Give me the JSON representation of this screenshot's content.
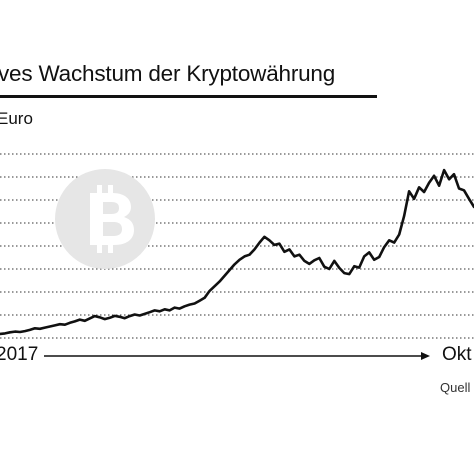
{
  "header": {
    "title": "ves Wachstum der Kryptowährung",
    "unit": "Euro"
  },
  "footer": {
    "source_label": "Quell"
  },
  "colors": {
    "line": "#111111",
    "grid": "#333333",
    "logo_circle": "#e6e6e6",
    "logo_symbol": "#ffffff"
  },
  "logo": {
    "icon": "bitcoin-logo-icon"
  },
  "chart_data": {
    "type": "line",
    "title": "ves Wachstum der Kryptowährung",
    "ylabel": "Euro",
    "xlabel": "",
    "x_tick_labels": [
      "2017",
      "Okt"
    ],
    "x": [
      0,
      5,
      10,
      15,
      20,
      25,
      30,
      35,
      40,
      45,
      50,
      55,
      60,
      65,
      70,
      75,
      80,
      85,
      90,
      95,
      100,
      105,
      110,
      115,
      120,
      125,
      130,
      135,
      140,
      145,
      150,
      155,
      160,
      165,
      170,
      175,
      180,
      185,
      190,
      195,
      200,
      205,
      210,
      215,
      220,
      225,
      230,
      235,
      240,
      245,
      250,
      255,
      260,
      265,
      270,
      275,
      280,
      285,
      290,
      295,
      300,
      305,
      310,
      315,
      320,
      325,
      330,
      335,
      340,
      345,
      350,
      355,
      360,
      365,
      370,
      375,
      380,
      385,
      390,
      395,
      400,
      405,
      410,
      415,
      420,
      425,
      430,
      435,
      440,
      445,
      450,
      455,
      460,
      465,
      470,
      475
    ],
    "y": [
      0.18,
      0.2,
      0.25,
      0.28,
      0.26,
      0.3,
      0.35,
      0.42,
      0.4,
      0.45,
      0.5,
      0.55,
      0.6,
      0.58,
      0.66,
      0.72,
      0.8,
      0.75,
      0.85,
      0.95,
      0.9,
      0.82,
      0.88,
      0.96,
      0.92,
      0.86,
      0.95,
      1.02,
      0.98,
      1.05,
      1.12,
      1.2,
      1.16,
      1.25,
      1.2,
      1.32,
      1.28,
      1.38,
      1.45,
      1.5,
      1.62,
      1.75,
      2.05,
      2.25,
      2.45,
      2.7,
      2.95,
      3.2,
      3.4,
      3.55,
      3.62,
      3.85,
      4.15,
      4.4,
      4.25,
      4.05,
      4.1,
      3.75,
      3.85,
      3.55,
      3.62,
      3.35,
      3.22,
      3.38,
      3.48,
      3.1,
      3.0,
      3.35,
      3.05,
      2.82,
      2.78,
      3.12,
      3.06,
      3.55,
      3.72,
      3.4,
      3.52,
      3.95,
      4.25,
      4.15,
      4.5,
      5.3,
      6.38,
      6.05,
      6.55,
      6.35,
      6.75,
      7.05,
      6.62,
      7.3,
      6.9,
      7.12,
      6.5,
      6.42,
      6.05,
      5.7
    ],
    "yticks_count": 9,
    "ylim": [
      0,
      8
    ],
    "xlim": [
      0,
      475
    ],
    "grid": true,
    "legend": "none"
  }
}
